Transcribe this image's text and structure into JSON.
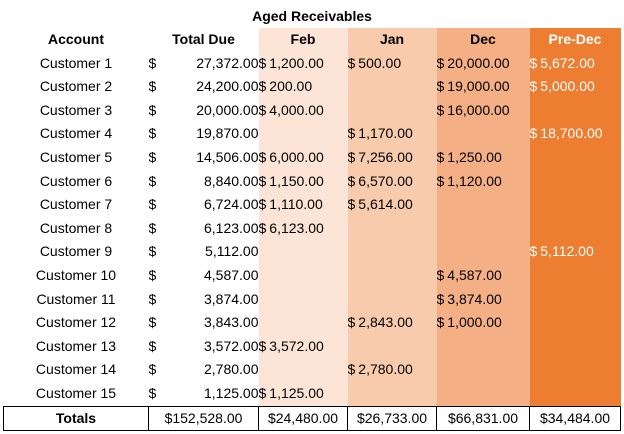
{
  "title": "Aged Receivables",
  "headers": {
    "account": "Account",
    "total_due": "Total Due",
    "feb": "Feb",
    "jan": "Jan",
    "dec": "Dec",
    "pre_dec": "Pre-Dec"
  },
  "colors": {
    "feb": "#fce4d6",
    "jan": "#f8cbad",
    "dec": "#f4b084",
    "pre_dec": "#ed7d31"
  },
  "currency_symbol": "$",
  "rows": [
    {
      "account": "Customer 1",
      "total_due": "27,372.00",
      "feb": "1,200.00",
      "jan": "500.00",
      "dec": "20,000.00",
      "pre_dec": "5,672.00"
    },
    {
      "account": "Customer 2",
      "total_due": "24,200.00",
      "feb": "200.00",
      "jan": "",
      "dec": "19,000.00",
      "pre_dec": "5,000.00"
    },
    {
      "account": "Customer 3",
      "total_due": "20,000.00",
      "feb": "4,000.00",
      "jan": "",
      "dec": "16,000.00",
      "pre_dec": ""
    },
    {
      "account": "Customer 4",
      "total_due": "19,870.00",
      "feb": "",
      "jan": "1,170.00",
      "dec": "",
      "pre_dec": "18,700.00"
    },
    {
      "account": "Customer 5",
      "total_due": "14,506.00",
      "feb": "6,000.00",
      "jan": "7,256.00",
      "dec": "1,250.00",
      "pre_dec": ""
    },
    {
      "account": "Customer 6",
      "total_due": "8,840.00",
      "feb": "1,150.00",
      "jan": "6,570.00",
      "dec": "1,120.00",
      "pre_dec": ""
    },
    {
      "account": "Customer 7",
      "total_due": "6,724.00",
      "feb": "1,110.00",
      "jan": "5,614.00",
      "dec": "",
      "pre_dec": ""
    },
    {
      "account": "Customer 8",
      "total_due": "6,123.00",
      "feb": "6,123.00",
      "jan": "",
      "dec": "",
      "pre_dec": ""
    },
    {
      "account": "Customer 9",
      "total_due": "5,112.00",
      "feb": "",
      "jan": "",
      "dec": "",
      "pre_dec": "5,112.00"
    },
    {
      "account": "Customer 10",
      "total_due": "4,587.00",
      "feb": "",
      "jan": "",
      "dec": "4,587.00",
      "pre_dec": ""
    },
    {
      "account": "Customer 11",
      "total_due": "3,874.00",
      "feb": "",
      "jan": "",
      "dec": "3,874.00",
      "pre_dec": ""
    },
    {
      "account": "Customer 12",
      "total_due": "3,843.00",
      "feb": "",
      "jan": "2,843.00",
      "dec": "1,000.00",
      "pre_dec": ""
    },
    {
      "account": "Customer 13",
      "total_due": "3,572.00",
      "feb": "3,572.00",
      "jan": "",
      "dec": "",
      "pre_dec": ""
    },
    {
      "account": "Customer 14",
      "total_due": "2,780.00",
      "feb": "",
      "jan": "2,780.00",
      "dec": "",
      "pre_dec": ""
    },
    {
      "account": "Customer 15",
      "total_due": "1,125.00",
      "feb": "1,125.00",
      "jan": "",
      "dec": "",
      "pre_dec": ""
    }
  ],
  "totals": {
    "label": "Totals",
    "total_due": "$152,528.00",
    "feb": "$24,480.00",
    "jan": "$26,733.00",
    "dec": "$66,831.00",
    "pre_dec": "$34,484.00"
  }
}
